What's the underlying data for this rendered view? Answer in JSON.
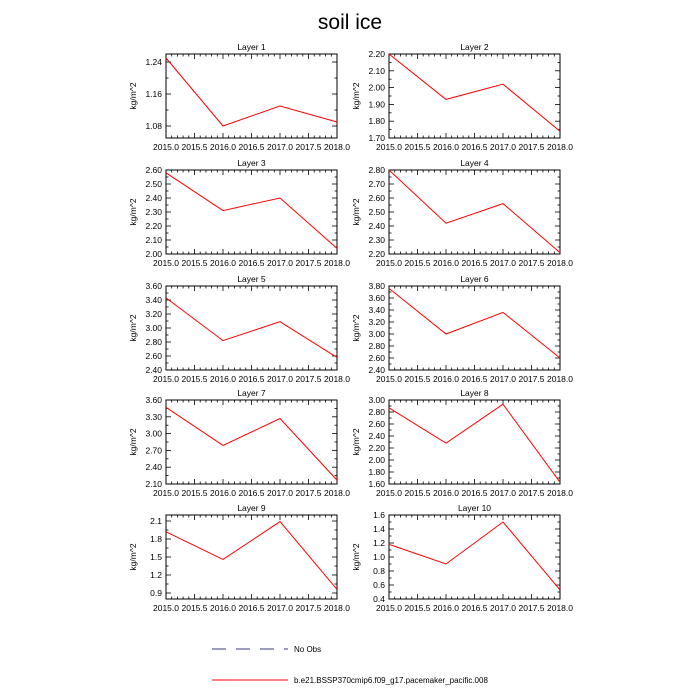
{
  "figure": {
    "title": "soil ice",
    "legend": [
      {
        "label": "No Obs",
        "color": "#3a3a7a",
        "dash": true
      },
      {
        "label": "b.e21.BSSP370cmip6.f09_g17.pacemaker_pacific.008",
        "color": "#ff0000",
        "dash": false
      }
    ]
  },
  "chart_data": [
    {
      "type": "line",
      "title": "Layer 1",
      "ylabel": "kg/m^2",
      "x": [
        2015.0,
        2016.0,
        2017.0,
        2018.0
      ],
      "xticks": [
        2015.0,
        2015.5,
        2016.0,
        2016.5,
        2017.0,
        2017.5,
        2018.0
      ],
      "xlim": [
        2015.0,
        2018.0
      ],
      "ylim": [
        1.05,
        1.26
      ],
      "yticks": [
        1.08,
        1.16,
        1.24
      ],
      "ytick_labels": [
        "1.08",
        "1.16",
        "1.24"
      ],
      "series": [
        {
          "values": [
            1.25,
            1.08,
            1.13,
            1.09
          ],
          "color": "#ff0000"
        }
      ]
    },
    {
      "type": "line",
      "title": "Layer 2",
      "ylabel": "kg/m^2",
      "x": [
        2015.0,
        2016.0,
        2017.0,
        2018.0
      ],
      "xticks": [
        2015.0,
        2015.5,
        2016.0,
        2016.5,
        2017.0,
        2017.5,
        2018.0
      ],
      "xlim": [
        2015.0,
        2018.0
      ],
      "ylim": [
        1.7,
        2.2
      ],
      "yticks": [
        1.7,
        1.8,
        1.9,
        2.0,
        2.1,
        2.2
      ],
      "ytick_labels": [
        "1.70",
        "1.80",
        "1.90",
        "2.00",
        "2.10",
        "2.20"
      ],
      "series": [
        {
          "values": [
            2.2,
            1.93,
            2.02,
            1.74
          ],
          "color": "#ff0000"
        }
      ]
    },
    {
      "type": "line",
      "title": "Layer 3",
      "ylabel": "kg/m^2",
      "x": [
        2015.0,
        2016.0,
        2017.0,
        2018.0
      ],
      "xticks": [
        2015.0,
        2015.5,
        2016.0,
        2016.5,
        2017.0,
        2017.5,
        2018.0
      ],
      "xlim": [
        2015.0,
        2018.0
      ],
      "ylim": [
        2.0,
        2.6
      ],
      "yticks": [
        2.0,
        2.1,
        2.2,
        2.3,
        2.4,
        2.5,
        2.6
      ],
      "ytick_labels": [
        "2.00",
        "2.10",
        "2.20",
        "2.30",
        "2.40",
        "2.50",
        "2.60"
      ],
      "series": [
        {
          "values": [
            2.58,
            2.31,
            2.4,
            2.04
          ],
          "color": "#ff0000"
        }
      ]
    },
    {
      "type": "line",
      "title": "Layer 4",
      "ylabel": "kg/m^2",
      "x": [
        2015.0,
        2016.0,
        2017.0,
        2018.0
      ],
      "xticks": [
        2015.0,
        2015.5,
        2016.0,
        2016.5,
        2017.0,
        2017.5,
        2018.0
      ],
      "xlim": [
        2015.0,
        2018.0
      ],
      "ylim": [
        2.2,
        2.8
      ],
      "yticks": [
        2.2,
        2.3,
        2.4,
        2.5,
        2.6,
        2.7,
        2.8
      ],
      "ytick_labels": [
        "2.20",
        "2.30",
        "2.40",
        "2.50",
        "2.60",
        "2.70",
        "2.80"
      ],
      "series": [
        {
          "values": [
            2.8,
            2.42,
            2.56,
            2.21
          ],
          "color": "#ff0000"
        }
      ]
    },
    {
      "type": "line",
      "title": "Layer 5",
      "ylabel": "kg/m^2",
      "x": [
        2015.0,
        2016.0,
        2017.0,
        2018.0
      ],
      "xticks": [
        2015.0,
        2015.5,
        2016.0,
        2016.5,
        2017.0,
        2017.5,
        2018.0
      ],
      "xlim": [
        2015.0,
        2018.0
      ],
      "ylim": [
        2.4,
        3.6
      ],
      "yticks": [
        2.4,
        2.6,
        2.8,
        3.0,
        3.2,
        3.4,
        3.6
      ],
      "ytick_labels": [
        "2.40",
        "2.60",
        "2.80",
        "3.00",
        "3.20",
        "3.40",
        "3.60"
      ],
      "series": [
        {
          "values": [
            3.43,
            2.82,
            3.09,
            2.58
          ],
          "color": "#ff0000"
        }
      ]
    },
    {
      "type": "line",
      "title": "Layer 6",
      "ylabel": "kg/m^2",
      "x": [
        2015.0,
        2016.0,
        2017.0,
        2018.0
      ],
      "xticks": [
        2015.0,
        2015.5,
        2016.0,
        2016.5,
        2017.0,
        2017.5,
        2018.0
      ],
      "xlim": [
        2015.0,
        2018.0
      ],
      "ylim": [
        2.4,
        3.8
      ],
      "yticks": [
        2.4,
        2.6,
        2.8,
        3.0,
        3.2,
        3.4,
        3.6,
        3.8
      ],
      "ytick_labels": [
        "2.40",
        "2.60",
        "2.80",
        "3.00",
        "3.20",
        "3.40",
        "3.60",
        "3.80"
      ],
      "series": [
        {
          "values": [
            3.76,
            3.0,
            3.36,
            2.6
          ],
          "color": "#ff0000"
        }
      ]
    },
    {
      "type": "line",
      "title": "Layer 7",
      "ylabel": "kg/m^2",
      "x": [
        2015.0,
        2016.0,
        2017.0,
        2018.0
      ],
      "xticks": [
        2015.0,
        2015.5,
        2016.0,
        2016.5,
        2017.0,
        2017.5,
        2018.0
      ],
      "xlim": [
        2015.0,
        2018.0
      ],
      "ylim": [
        2.1,
        3.6
      ],
      "yticks": [
        2.1,
        2.4,
        2.7,
        3.0,
        3.3,
        3.6
      ],
      "ytick_labels": [
        "2.10",
        "2.40",
        "2.70",
        "3.00",
        "3.30",
        "3.60"
      ],
      "series": [
        {
          "values": [
            3.47,
            2.79,
            3.27,
            2.17
          ],
          "color": "#ff0000"
        }
      ]
    },
    {
      "type": "line",
      "title": "Layer 8",
      "ylabel": "kg/m^2",
      "x": [
        2015.0,
        2016.0,
        2017.0,
        2018.0
      ],
      "xticks": [
        2015.0,
        2015.5,
        2016.0,
        2016.5,
        2017.0,
        2017.5,
        2018.0
      ],
      "xlim": [
        2015.0,
        2018.0
      ],
      "ylim": [
        1.6,
        3.0
      ],
      "yticks": [
        1.6,
        1.8,
        2.0,
        2.2,
        2.4,
        2.6,
        2.8,
        3.0
      ],
      "ytick_labels": [
        "1.60",
        "1.80",
        "2.00",
        "2.20",
        "2.40",
        "2.60",
        "2.80",
        "3.00"
      ],
      "series": [
        {
          "values": [
            2.87,
            2.28,
            2.93,
            1.63
          ],
          "color": "#ff0000"
        }
      ]
    },
    {
      "type": "line",
      "title": "Layer 9",
      "ylabel": "kg/m^2",
      "x": [
        2015.0,
        2016.0,
        2017.0,
        2018.0
      ],
      "xticks": [
        2015.0,
        2015.5,
        2016.0,
        2016.5,
        2017.0,
        2017.5,
        2018.0
      ],
      "xlim": [
        2015.0,
        2018.0
      ],
      "ylim": [
        0.8,
        2.2
      ],
      "yticks": [
        0.9,
        1.2,
        1.5,
        1.8,
        2.1
      ],
      "ytick_labels": [
        "0.9",
        "1.2",
        "1.5",
        "1.8",
        "2.1"
      ],
      "series": [
        {
          "values": [
            1.92,
            1.46,
            2.09,
            0.96
          ],
          "color": "#ff0000"
        }
      ]
    },
    {
      "type": "line",
      "title": "Layer 10",
      "ylabel": "kg/m^2",
      "x": [
        2015.0,
        2016.0,
        2017.0,
        2018.0
      ],
      "xticks": [
        2015.0,
        2015.5,
        2016.0,
        2016.5,
        2017.0,
        2017.5,
        2018.0
      ],
      "xlim": [
        2015.0,
        2018.0
      ],
      "ylim": [
        0.4,
        1.6
      ],
      "yticks": [
        0.4,
        0.6,
        0.8,
        1.0,
        1.2,
        1.4,
        1.6
      ],
      "ytick_labels": [
        "0.4",
        "0.6",
        "0.8",
        "1.0",
        "1.2",
        "1.4",
        "1.6"
      ],
      "series": [
        {
          "values": [
            1.18,
            0.9,
            1.5,
            0.53
          ],
          "color": "#ff0000"
        }
      ]
    }
  ]
}
